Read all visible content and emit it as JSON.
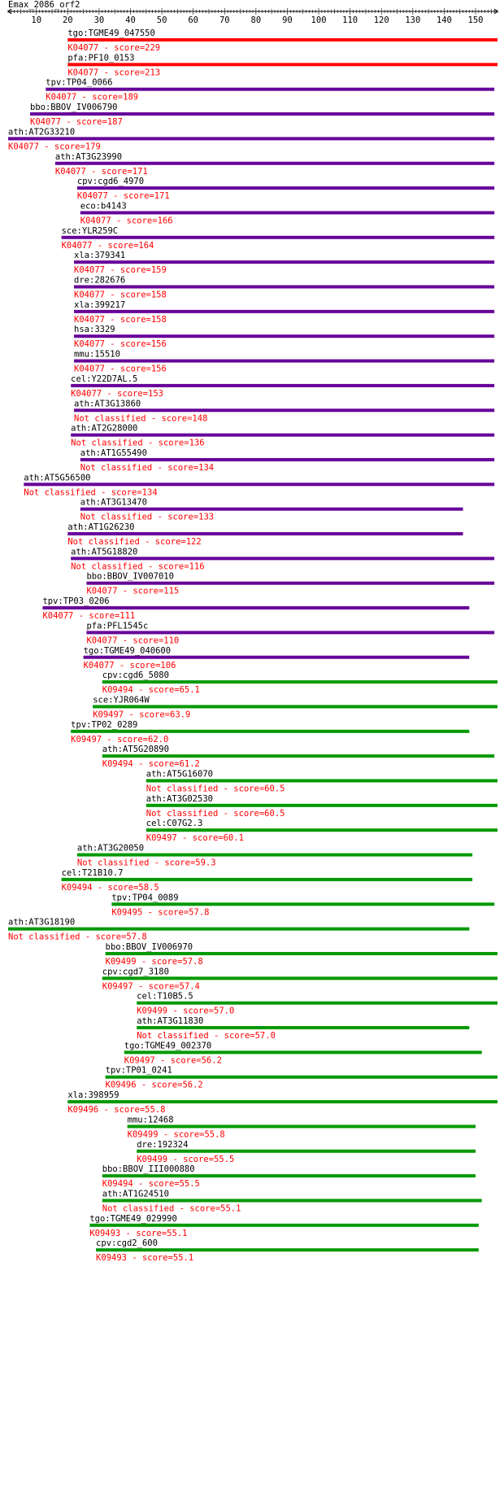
{
  "header": {
    "title": "Emax_2086_orf2"
  },
  "colors": {
    "red": "#ff0000",
    "purple": "#660099",
    "green": "#009900",
    "ruler": "#000000",
    "name_text": "#000000",
    "sub_text": "#ff0000"
  },
  "ruler": {
    "min": 1,
    "max": 157,
    "ticks": [
      10,
      20,
      30,
      40,
      50,
      60,
      70,
      80,
      90,
      100,
      110,
      120,
      130,
      140,
      150
    ]
  },
  "hits": [
    {
      "name": "tgo:TGME49_047550",
      "sub": "K04077 - score=229",
      "start": 20,
      "end": 157,
      "color": "red"
    },
    {
      "name": "pfa:PF10_0153",
      "sub": "K04077 - score=213",
      "start": 20,
      "end": 157,
      "color": "red"
    },
    {
      "name": "tpv:TP04_0066",
      "sub": "K04077 - score=189",
      "start": 13,
      "end": 156,
      "color": "purple"
    },
    {
      "name": "bbo:BBOV_IV006790",
      "sub": "K04077 - score=187",
      "start": 8,
      "end": 156,
      "color": "purple"
    },
    {
      "name": "ath:AT2G33210",
      "sub": "K04077 - score=179",
      "start": 1,
      "end": 156,
      "color": "purple"
    },
    {
      "name": "ath:AT3G23990",
      "sub": "K04077 - score=171",
      "start": 16,
      "end": 156,
      "color": "purple"
    },
    {
      "name": "cpv:cgd6_4970",
      "sub": "K04077 - score=171",
      "start": 23,
      "end": 156,
      "color": "purple"
    },
    {
      "name": "eco:b4143",
      "sub": "K04077 - score=166",
      "start": 24,
      "end": 156,
      "color": "purple"
    },
    {
      "name": "sce:YLR259C",
      "sub": "K04077 - score=164",
      "start": 18,
      "end": 156,
      "color": "purple"
    },
    {
      "name": "xla:379341",
      "sub": "K04077 - score=159",
      "start": 22,
      "end": 156,
      "color": "purple"
    },
    {
      "name": "dre:282676",
      "sub": "K04077 - score=158",
      "start": 22,
      "end": 156,
      "color": "purple"
    },
    {
      "name": "xla:399217",
      "sub": "K04077 - score=158",
      "start": 22,
      "end": 156,
      "color": "purple"
    },
    {
      "name": "hsa:3329",
      "sub": "K04077 - score=156",
      "start": 22,
      "end": 156,
      "color": "purple"
    },
    {
      "name": "mmu:15510",
      "sub": "K04077 - score=156",
      "start": 22,
      "end": 156,
      "color": "purple"
    },
    {
      "name": "cel:Y22D7AL.5",
      "sub": "K04077 - score=153",
      "start": 21,
      "end": 156,
      "color": "purple"
    },
    {
      "name": "ath:AT3G13860",
      "sub": "Not classified - score=148",
      "start": 22,
      "end": 156,
      "color": "purple"
    },
    {
      "name": "ath:AT2G28000",
      "sub": "Not classified - score=136",
      "start": 21,
      "end": 156,
      "color": "purple"
    },
    {
      "name": "ath:AT1G55490",
      "sub": "Not classified - score=134",
      "start": 24,
      "end": 156,
      "color": "purple"
    },
    {
      "name": "ath:AT5G56500",
      "sub": "Not classified - score=134",
      "start": 6,
      "end": 156,
      "color": "purple"
    },
    {
      "name": "ath:AT3G13470",
      "sub": "Not classified - score=133",
      "start": 24,
      "end": 146,
      "color": "purple"
    },
    {
      "name": "ath:AT1G26230",
      "sub": "Not classified - score=122",
      "start": 20,
      "end": 146,
      "color": "purple"
    },
    {
      "name": "ath:AT5G18820",
      "sub": "Not classified - score=116",
      "start": 21,
      "end": 156,
      "color": "purple"
    },
    {
      "name": "bbo:BBOV_IV007010",
      "sub": "K04077 - score=115",
      "start": 26,
      "end": 156,
      "color": "purple"
    },
    {
      "name": "tpv:TP03_0206",
      "sub": "K04077 - score=111",
      "start": 12,
      "end": 148,
      "color": "purple"
    },
    {
      "name": "pfa:PFL1545c",
      "sub": "K04077 - score=110",
      "start": 26,
      "end": 156,
      "color": "purple"
    },
    {
      "name": "tgo:TGME49_040600",
      "sub": "K04077 - score=106",
      "start": 25,
      "end": 148,
      "color": "purple"
    },
    {
      "name": "cpv:cgd6_5080",
      "sub": "K09494 - score=65.1",
      "start": 31,
      "end": 157,
      "color": "green"
    },
    {
      "name": "sce:YJR064W",
      "sub": "K09497 - score=63.9",
      "start": 28,
      "end": 157,
      "color": "green"
    },
    {
      "name": "tpv:TP02_0289",
      "sub": "K09497 - score=62.0",
      "start": 21,
      "end": 148,
      "color": "green"
    },
    {
      "name": "ath:AT5G20890",
      "sub": "K09494 - score=61.2",
      "start": 31,
      "end": 156,
      "color": "green"
    },
    {
      "name": "ath:AT5G16070",
      "sub": "Not classified - score=60.5",
      "start": 45,
      "end": 157,
      "color": "green"
    },
    {
      "name": "ath:AT3G02530",
      "sub": "Not classified - score=60.5",
      "start": 45,
      "end": 157,
      "color": "green"
    },
    {
      "name": "cel:C07G2.3",
      "sub": "K09497 - score=60.1",
      "start": 45,
      "end": 157,
      "color": "green"
    },
    {
      "name": "ath:AT3G20050",
      "sub": "Not classified - score=59.3",
      "start": 23,
      "end": 149,
      "color": "green"
    },
    {
      "name": "cel:T21B10.7",
      "sub": "K09494 - score=58.5",
      "start": 18,
      "end": 149,
      "color": "green"
    },
    {
      "name": "tpv:TP04_0089",
      "sub": "K09495 - score=57.8",
      "start": 34,
      "end": 156,
      "color": "green"
    },
    {
      "name": "ath:AT3G18190",
      "sub": "Not classified - score=57.8",
      "start": 1,
      "end": 148,
      "color": "green"
    },
    {
      "name": "bbo:BBOV_IV006970",
      "sub": "K09499 - score=57.8",
      "start": 32,
      "end": 157,
      "color": "green"
    },
    {
      "name": "cpv:cgd7_3180",
      "sub": "K09497 - score=57.4",
      "start": 31,
      "end": 157,
      "color": "green"
    },
    {
      "name": "cel:T10B5.5",
      "sub": "K09499 - score=57.0",
      "start": 42,
      "end": 157,
      "color": "green"
    },
    {
      "name": "ath:AT3G11830",
      "sub": "Not classified - score=57.0",
      "start": 42,
      "end": 148,
      "color": "green"
    },
    {
      "name": "tgo:TGME49_002370",
      "sub": "K09497 - score=56.2",
      "start": 38,
      "end": 152,
      "color": "green"
    },
    {
      "name": "tpv:TP01_0241",
      "sub": "K09496 - score=56.2",
      "start": 32,
      "end": 157,
      "color": "green"
    },
    {
      "name": "xla:398959",
      "sub": "K09496 - score=55.8",
      "start": 20,
      "end": 157,
      "color": "green"
    },
    {
      "name": "mmu:12468",
      "sub": "K09499 - score=55.8",
      "start": 39,
      "end": 150,
      "color": "green"
    },
    {
      "name": "dre:192324",
      "sub": "K09499 - score=55.5",
      "start": 42,
      "end": 150,
      "color": "green"
    },
    {
      "name": "bbo:BBOV_III000880",
      "sub": "K09494 - score=55.5",
      "start": 31,
      "end": 150,
      "color": "green"
    },
    {
      "name": "ath:AT1G24510",
      "sub": "Not classified - score=55.1",
      "start": 31,
      "end": 152,
      "color": "green"
    },
    {
      "name": "tgo:TGME49_029990",
      "sub": "K09493 - score=55.1",
      "start": 27,
      "end": 151,
      "color": "green"
    },
    {
      "name": "cpv:cgd2_600",
      "sub": "K09493 - score=55.1",
      "start": 29,
      "end": 151,
      "color": "green"
    }
  ]
}
